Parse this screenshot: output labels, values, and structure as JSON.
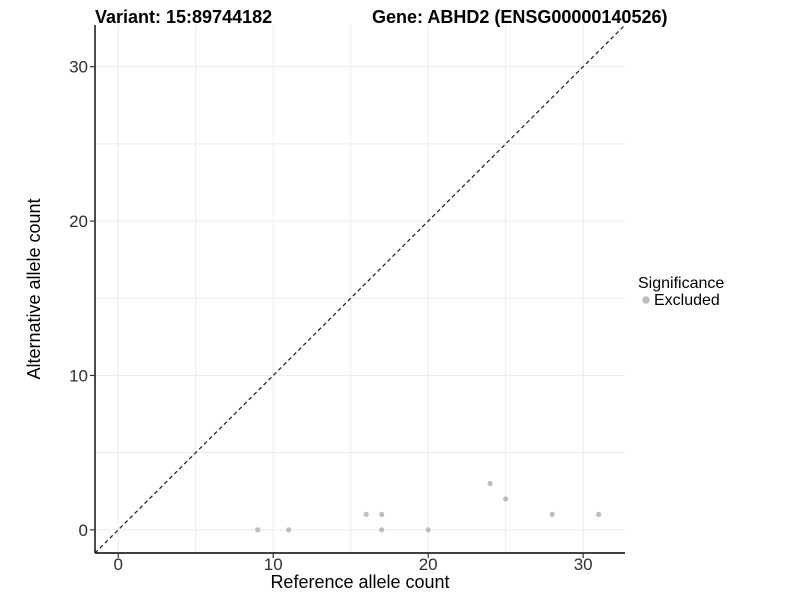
{
  "header": {
    "variant_title": "Variant: 15:89744182",
    "gene_title": "Gene: ABHD2 (ENSG00000140526)"
  },
  "chart_data": {
    "type": "scatter",
    "title_left": "Variant: 15:89744182",
    "title_right": "Gene: ABHD2 (ENSG00000140526)",
    "xlabel": "Reference allele count",
    "ylabel": "Alternative allele count",
    "xlim": [
      -1.5,
      32.7
    ],
    "ylim": [
      -1.5,
      32.7
    ],
    "x_ticks": [
      0,
      10,
      20,
      30
    ],
    "y_ticks": [
      0,
      10,
      20,
      30
    ],
    "grid_values": [
      0,
      5,
      10,
      15,
      20,
      25,
      30
    ],
    "grid_on": true,
    "identity_line": {
      "slope": 1,
      "intercept": 0,
      "style": "dashed",
      "color": "#1a1a1a"
    },
    "series": [
      {
        "name": "Excluded",
        "color": "#bdbdbd",
        "points": [
          [
            9,
            0
          ],
          [
            11,
            0
          ],
          [
            16,
            1
          ],
          [
            17,
            0
          ],
          [
            17,
            1
          ],
          [
            20,
            0
          ],
          [
            24,
            3
          ],
          [
            25,
            2
          ],
          [
            28,
            1
          ],
          [
            31,
            1
          ]
        ]
      }
    ],
    "legend": {
      "title": "Significance",
      "position": "right",
      "entries": [
        {
          "label": "Excluded",
          "color": "#bdbdbd"
        }
      ]
    },
    "colors": {
      "background": "#ffffff",
      "grid": "#ececec",
      "axis_line": "#000000",
      "tick_mark": "#333333",
      "tick_label": "#303030",
      "point": "#bdbdbd"
    }
  }
}
